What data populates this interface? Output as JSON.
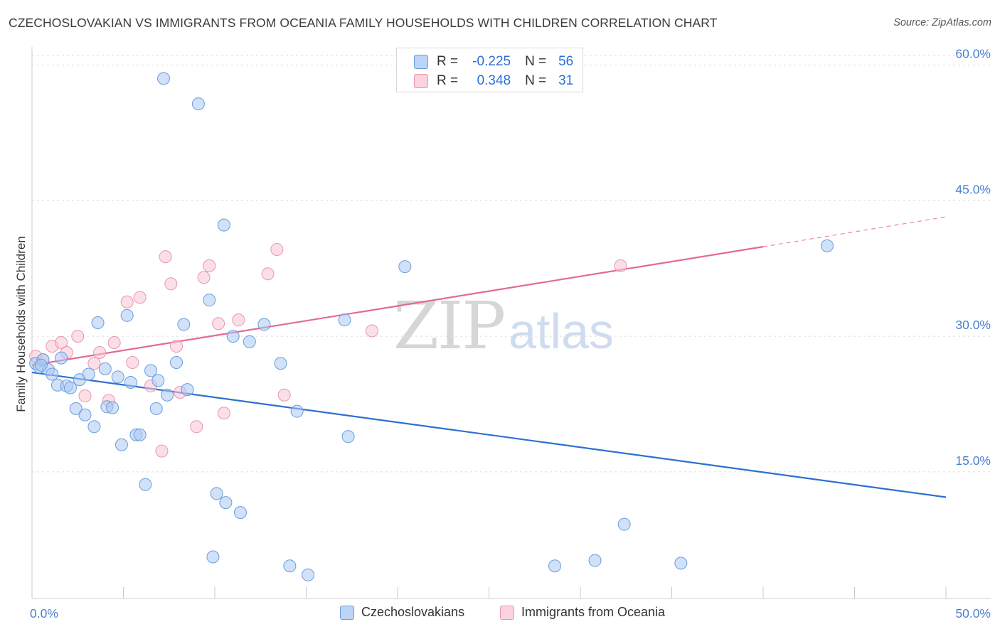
{
  "title": "CZECHOSLOVAKIAN VS IMMIGRANTS FROM OCEANIA FAMILY HOUSEHOLDS WITH CHILDREN CORRELATION CHART",
  "source": "Source: ZipAtlas.com",
  "watermark": {
    "zip": "ZIP",
    "atlas": "atlas"
  },
  "legend_top": {
    "rows": [
      {
        "r_label": "R =",
        "r_value": "-0.225",
        "n_label": "N =",
        "n_value": "56"
      },
      {
        "r_label": "R =",
        "r_value": "0.348",
        "n_label": "N =",
        "n_value": "31"
      }
    ]
  },
  "colors": {
    "blue_fill": "#a9c8f2",
    "blue_stroke": "#6a9de0",
    "blue_line": "#2d6fd2",
    "pink_fill": "#f7c4d3",
    "pink_stroke": "#ea95ae",
    "pink_line": "#e36a91",
    "grid": "#dedede",
    "axis_text": "#4a7fd0"
  },
  "chart_data": {
    "type": "scatter",
    "title": "CZECHOSLOVAKIAN VS IMMIGRANTS FROM OCEANIA FAMILY HOUSEHOLDS WITH CHILDREN CORRELATION CHART",
    "xlabel": "",
    "ylabel": "Family Households with Children",
    "xlim": [
      0,
      50
    ],
    "ylim": [
      1,
      62
    ],
    "x_tick_labels": [
      "0.0%",
      "50.0%"
    ],
    "y_ticks": [
      15,
      30,
      45,
      60
    ],
    "y_tick_labels": [
      "15.0%",
      "30.0%",
      "45.0%",
      "60.0%"
    ],
    "grid": true,
    "legend_position": "bottom",
    "series": [
      {
        "name": "Czechoslovakians",
        "color": "#a9c8f2",
        "r": -0.225,
        "n": 56,
        "trend": {
          "x": [
            0,
            50
          ],
          "y": [
            26.0,
            12.2
          ]
        },
        "points": [
          [
            0.2,
            27.0
          ],
          [
            0.4,
            26.6
          ],
          [
            0.6,
            27.4
          ],
          [
            0.9,
            26.3
          ],
          [
            1.1,
            25.8
          ],
          [
            1.4,
            24.6
          ],
          [
            1.6,
            27.6
          ],
          [
            1.9,
            24.5
          ],
          [
            2.1,
            24.3
          ],
          [
            2.4,
            22.0
          ],
          [
            2.6,
            25.2
          ],
          [
            2.9,
            21.3
          ],
          [
            3.1,
            25.8
          ],
          [
            3.4,
            20.0
          ],
          [
            3.6,
            31.5
          ],
          [
            4.0,
            26.4
          ],
          [
            4.1,
            22.2
          ],
          [
            4.4,
            22.1
          ],
          [
            4.7,
            25.5
          ],
          [
            4.9,
            18.0
          ],
          [
            5.2,
            32.3
          ],
          [
            5.4,
            24.9
          ],
          [
            5.7,
            19.1
          ],
          [
            5.9,
            19.1
          ],
          [
            6.2,
            13.6
          ],
          [
            6.5,
            26.2
          ],
          [
            6.8,
            22.0
          ],
          [
            6.9,
            25.1
          ],
          [
            7.2,
            58.5
          ],
          [
            7.4,
            23.5
          ],
          [
            7.9,
            27.1
          ],
          [
            8.3,
            31.3
          ],
          [
            8.5,
            24.1
          ],
          [
            9.1,
            55.7
          ],
          [
            9.7,
            34.0
          ],
          [
            9.9,
            5.6
          ],
          [
            10.1,
            12.6
          ],
          [
            10.5,
            42.3
          ],
          [
            10.6,
            11.6
          ],
          [
            11.0,
            30.0
          ],
          [
            11.4,
            10.5
          ],
          [
            11.9,
            29.4
          ],
          [
            12.7,
            31.3
          ],
          [
            13.6,
            27.0
          ],
          [
            14.1,
            4.6
          ],
          [
            14.5,
            21.7
          ],
          [
            15.1,
            3.6
          ],
          [
            17.1,
            31.8
          ],
          [
            17.3,
            18.9
          ],
          [
            20.4,
            37.7
          ],
          [
            28.6,
            4.6
          ],
          [
            30.8,
            5.2
          ],
          [
            32.4,
            9.2
          ],
          [
            35.5,
            4.9
          ],
          [
            43.5,
            40.0
          ],
          [
            0.5,
            26.8
          ]
        ]
      },
      {
        "name": "Immigrants from Oceania",
        "color": "#f7c4d3",
        "r": 0.348,
        "n": 31,
        "trend_solid": {
          "x": [
            0,
            40
          ],
          "y": [
            26.8,
            39.9
          ]
        },
        "trend_dashed": {
          "x": [
            40,
            50
          ],
          "y": [
            39.9,
            43.2
          ]
        },
        "points": [
          [
            0.2,
            27.8
          ],
          [
            0.6,
            27.4
          ],
          [
            1.1,
            28.9
          ],
          [
            1.6,
            29.3
          ],
          [
            1.9,
            28.2
          ],
          [
            2.5,
            30.0
          ],
          [
            2.9,
            23.4
          ],
          [
            3.4,
            27.0
          ],
          [
            3.7,
            28.2
          ],
          [
            4.2,
            22.9
          ],
          [
            4.5,
            29.3
          ],
          [
            5.2,
            33.8
          ],
          [
            5.5,
            27.1
          ],
          [
            5.9,
            34.3
          ],
          [
            6.5,
            24.5
          ],
          [
            7.1,
            17.3
          ],
          [
            7.3,
            38.8
          ],
          [
            7.6,
            35.8
          ],
          [
            7.9,
            28.9
          ],
          [
            8.1,
            23.8
          ],
          [
            9.0,
            20.0
          ],
          [
            9.4,
            36.5
          ],
          [
            9.7,
            37.8
          ],
          [
            10.2,
            31.4
          ],
          [
            10.5,
            21.5
          ],
          [
            11.3,
            31.8
          ],
          [
            12.9,
            36.9
          ],
          [
            13.4,
            39.6
          ],
          [
            13.8,
            23.5
          ],
          [
            18.6,
            30.6
          ],
          [
            32.2,
            37.8
          ]
        ]
      }
    ]
  }
}
